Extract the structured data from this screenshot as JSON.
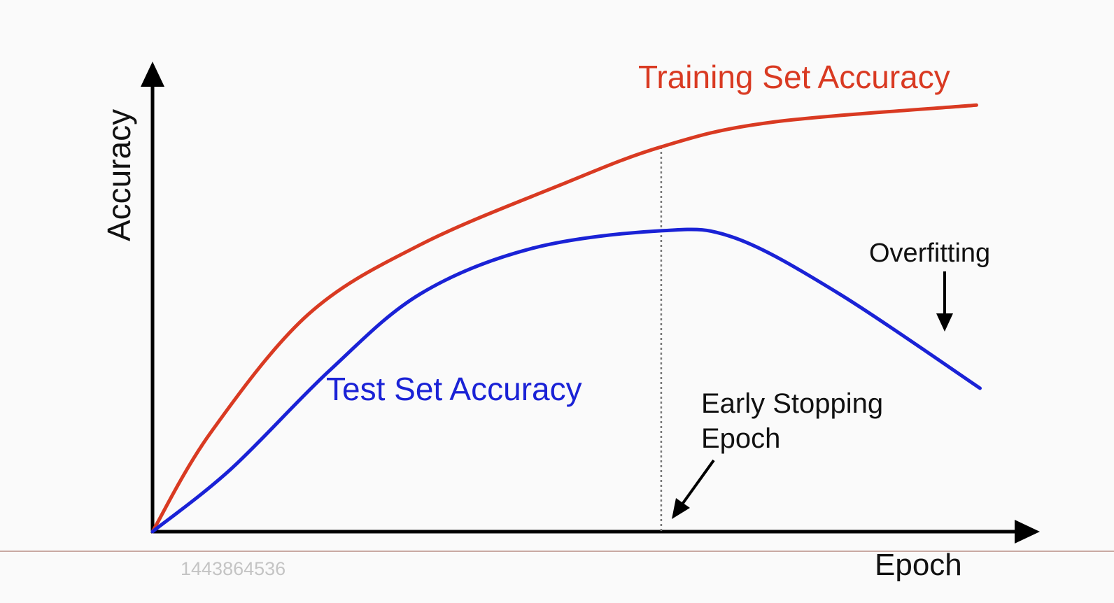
{
  "chart_data": {
    "type": "line",
    "title": "",
    "xlabel": "Epoch",
    "ylabel": "Accuracy",
    "xlim": [
      0,
      100
    ],
    "ylim": [
      0,
      100
    ],
    "ticks": false,
    "grid": false,
    "series": [
      {
        "name": "Training Set Accuracy",
        "color": "#d93a22",
        "x": [
          0,
          6.5,
          17.6,
          30.3,
          46.1,
          57.6,
          69.9,
          93.3
        ],
        "y": [
          0,
          20.9,
          46.3,
          61.2,
          73.9,
          82.1,
          87.3,
          91.0
        ]
      },
      {
        "name": "Test Set Accuracy",
        "color": "#1a22d6",
        "x": [
          0,
          8.9,
          20.0,
          30.3,
          42.9,
          57.6,
          65.9,
          77.8,
          93.7
        ],
        "y": [
          0,
          13.4,
          34.3,
          50.7,
          60.4,
          64.2,
          62.7,
          50.7,
          30.6
        ]
      }
    ],
    "annotations": {
      "early_stopping_line": "Early Stopping",
      "early_stopping_text_1": "Early Stopping",
      "early_stopping_text_2": "Epoch",
      "early_stopping_x": 57.6,
      "overfitting_text": "Overfitting"
    }
  },
  "watermark": "1443864536"
}
